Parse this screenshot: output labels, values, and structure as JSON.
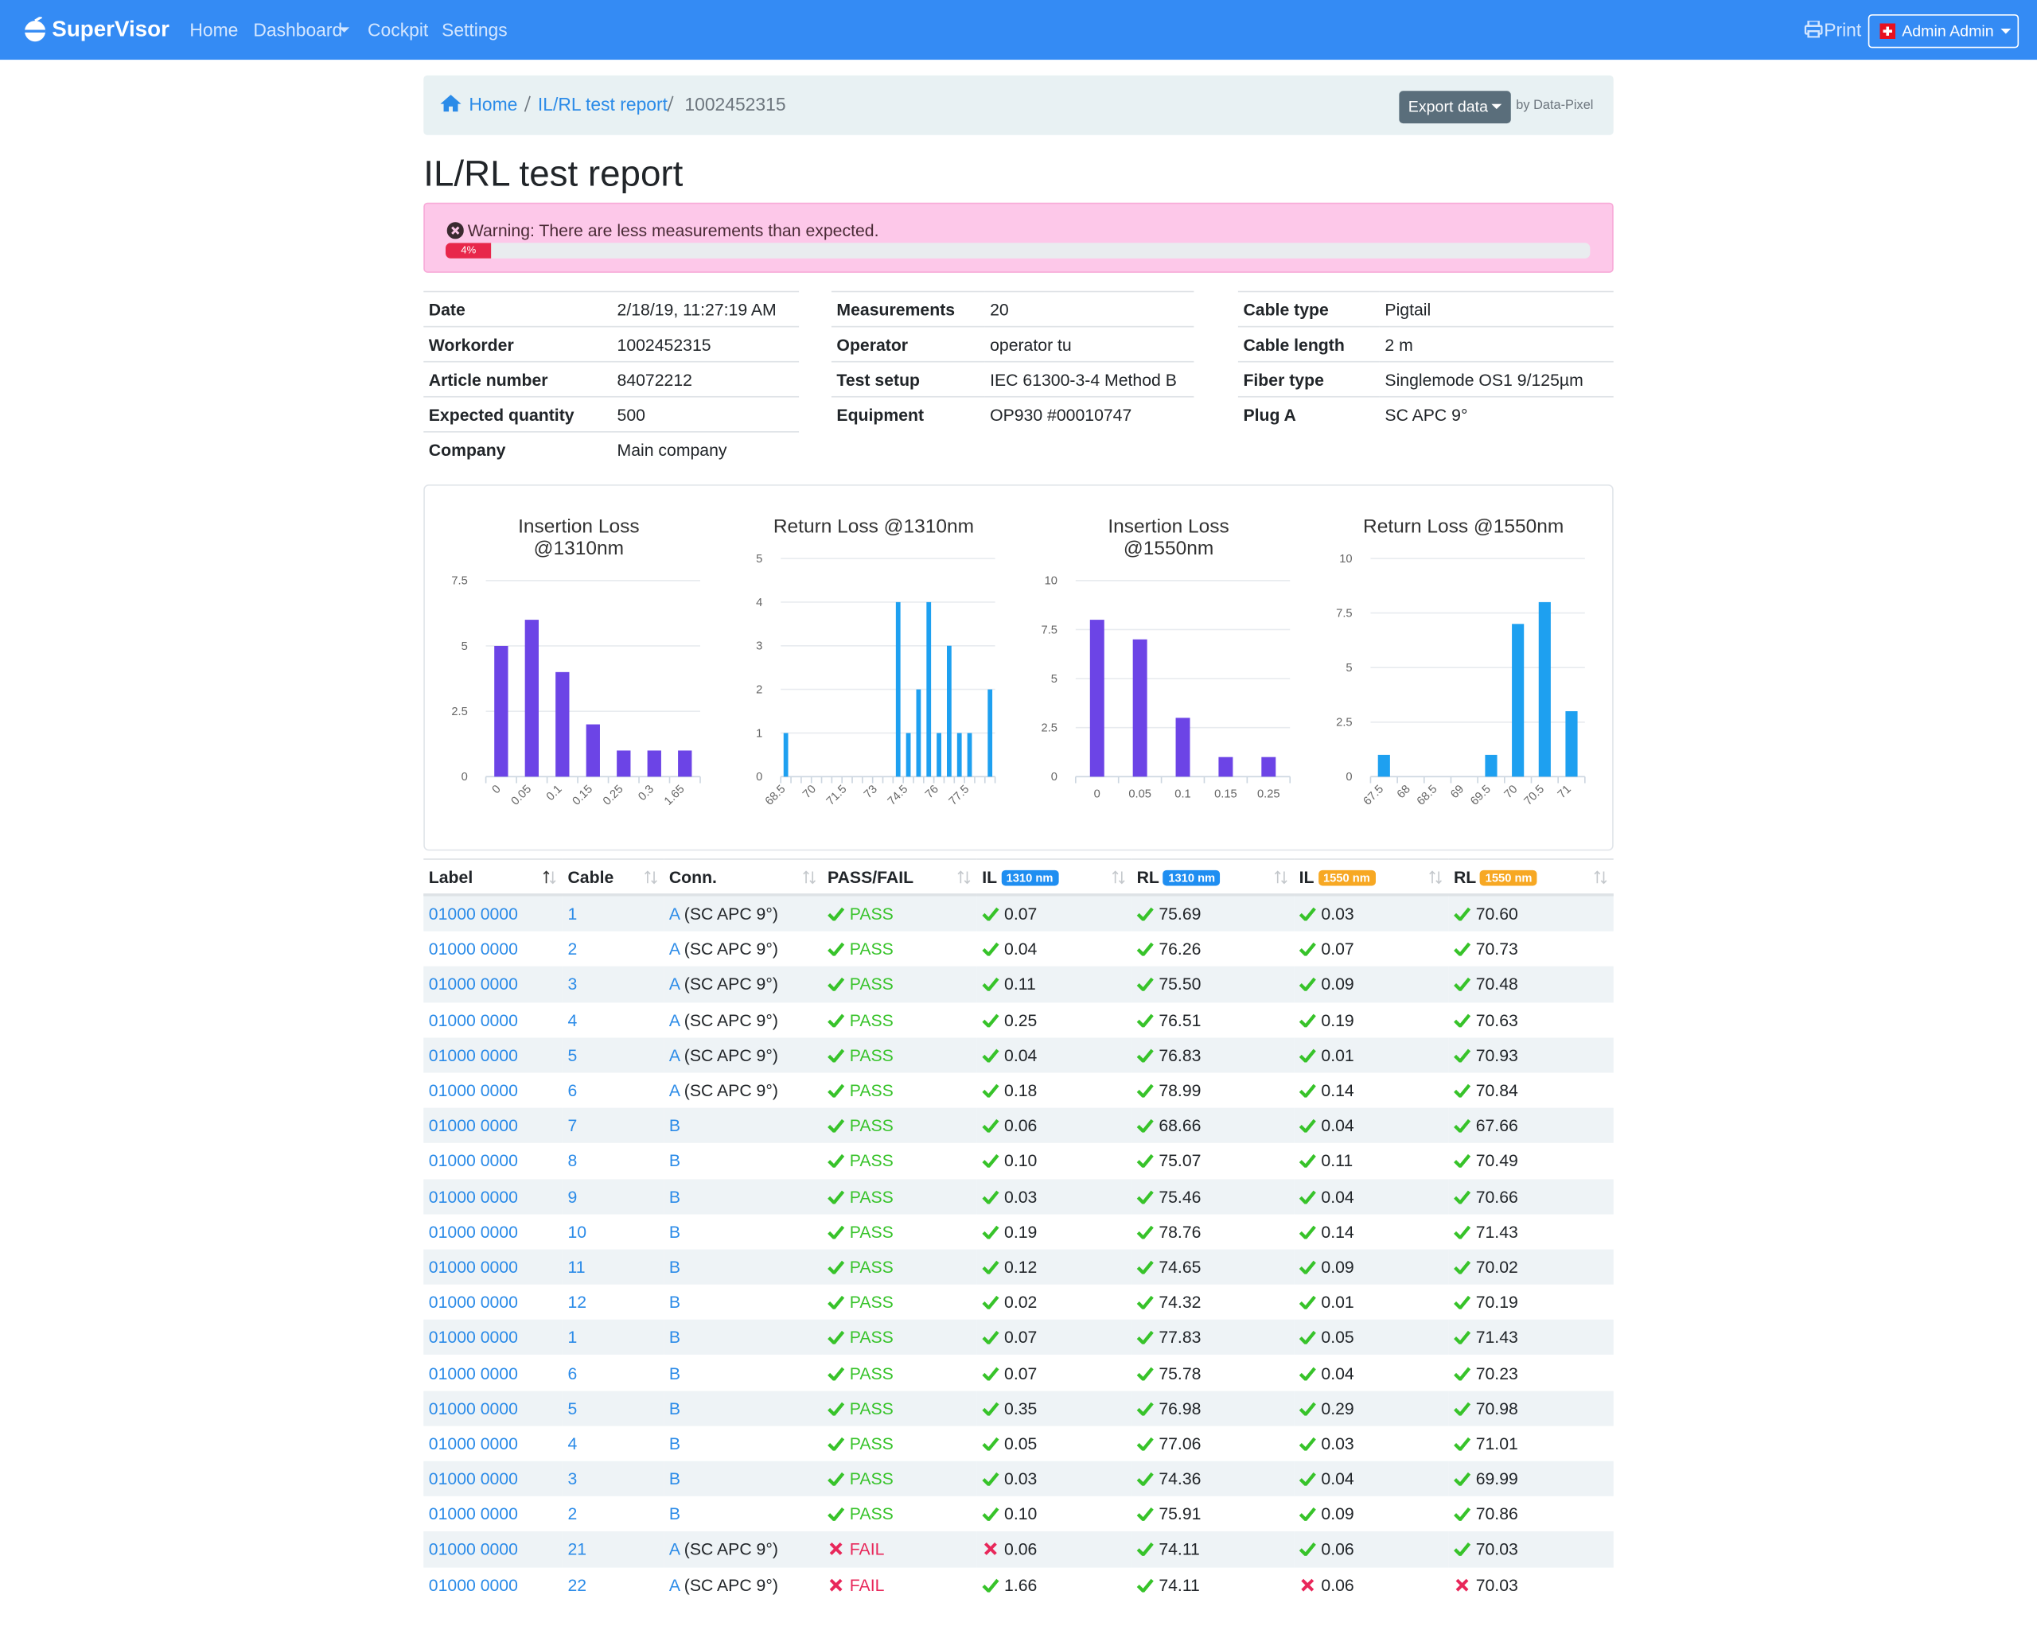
{
  "nav": {
    "brand": "SuperVisor",
    "links": [
      "Home",
      "Dashboard",
      "Cockpit",
      "Settings"
    ],
    "print": "Print",
    "user": "Admin Admin"
  },
  "breadcrumb": {
    "items": [
      "Home",
      "IL/RL test report",
      "1002452315"
    ],
    "export": "Export data",
    "credit": "by Data-Pixel"
  },
  "title": "IL/RL test report",
  "alert": {
    "text": "Warning: There are less measurements than expected.",
    "progress": 4,
    "progress_label": "4%"
  },
  "details": [
    [
      {
        "label": "Date",
        "value": "2/18/19, 11:27:19 AM"
      },
      {
        "label": "Workorder",
        "value": "1002452315"
      },
      {
        "label": "Article number",
        "value": "84072212"
      },
      {
        "label": "Expected quantity",
        "value": "500"
      },
      {
        "label": "Company",
        "value": "Main company"
      }
    ],
    [
      {
        "label": "Measurements",
        "value": "20"
      },
      {
        "label": "Operator",
        "value": "operator tu"
      },
      {
        "label": "Test setup",
        "value": "IEC 61300-3-4 Method B"
      },
      {
        "label": "Equipment",
        "value": "OP930 #00010747"
      }
    ],
    [
      {
        "label": "Cable type",
        "value": "Pigtail"
      },
      {
        "label": "Cable length",
        "value": "2 m"
      },
      {
        "label": "Fiber type",
        "value": "Singlemode OS1 9/125µm"
      },
      {
        "label": "Plug A",
        "value": "SC APC 9°"
      }
    ]
  ],
  "chart_data": [
    {
      "type": "bar",
      "title": "Insertion Loss @1310nm",
      "color": "#6c44e6",
      "grid": true,
      "categories": [
        "0",
        "0.05",
        "0.1",
        "0.15",
        "0.25",
        "0.3",
        "1.65"
      ],
      "values": [
        5,
        6,
        4,
        2,
        1,
        1,
        1
      ],
      "ylim": [
        0,
        7.5
      ],
      "yticks": [
        0,
        2.5,
        5,
        7.5
      ]
    },
    {
      "type": "bar",
      "title": "Return Loss @1310nm",
      "color": "#1ea0f0",
      "grid": true,
      "categories": [
        "68.5",
        null,
        null,
        "70",
        null,
        null,
        "71.5",
        null,
        null,
        "73",
        null,
        null,
        "74.5",
        null,
        null,
        "76",
        null,
        null,
        "77.5",
        null,
        null
      ],
      "values": [
        1,
        0,
        0,
        0,
        0,
        0,
        0,
        0,
        0,
        0,
        0,
        4,
        1,
        2,
        4,
        1,
        3,
        1,
        1,
        0,
        2
      ],
      "ylim": [
        0,
        5
      ],
      "yticks": [
        0,
        1,
        2,
        3,
        4,
        5
      ]
    },
    {
      "type": "bar",
      "title": "Insertion Loss @1550nm",
      "color": "#6c44e6",
      "grid": true,
      "categories": [
        "0",
        "0.05",
        "0.1",
        "0.15",
        "0.25"
      ],
      "values": [
        8,
        7,
        3,
        1,
        1
      ],
      "ylim": [
        0,
        10
      ],
      "yticks": [
        0,
        2.5,
        5,
        7.5,
        10
      ]
    },
    {
      "type": "bar",
      "title": "Return Loss @1550nm",
      "color": "#1ea0f0",
      "grid": true,
      "categories": [
        "67.5",
        "68",
        "68.5",
        "69",
        "69.5",
        "70",
        "70.5",
        "71"
      ],
      "values": [
        1,
        0,
        0,
        0,
        1,
        7,
        8,
        3
      ],
      "ylim": [
        0,
        10
      ],
      "yticks": [
        0,
        2.5,
        5,
        7.5,
        10
      ]
    }
  ],
  "table": {
    "columns": [
      {
        "label": "Label"
      },
      {
        "label": "Cable"
      },
      {
        "label": "Conn."
      },
      {
        "label": "PASS/FAIL"
      },
      {
        "label": "IL",
        "badge": "1310 nm",
        "badge_color": "#1f8ef1"
      },
      {
        "label": "RL",
        "badge": "1310 nm",
        "badge_color": "#1f8ef1"
      },
      {
        "label": "IL",
        "badge": "1550 nm",
        "badge_color": "#f7a823"
      },
      {
        "label": "RL",
        "badge": "1550 nm",
        "badge_color": "#f7a823"
      }
    ],
    "rows": [
      {
        "label": "01000 0000",
        "cable": "1",
        "conn": "A",
        "plug": "(SC APC 9°)",
        "status": "PASS",
        "pass": true,
        "values": [
          "0.07",
          "75.69",
          "0.03",
          "70.60"
        ],
        "ok": [
          true,
          true,
          true,
          true
        ]
      },
      {
        "label": "01000 0000",
        "cable": "2",
        "conn": "A",
        "plug": "(SC APC 9°)",
        "status": "PASS",
        "pass": true,
        "values": [
          "0.04",
          "76.26",
          "0.07",
          "70.73"
        ],
        "ok": [
          true,
          true,
          true,
          true
        ]
      },
      {
        "label": "01000 0000",
        "cable": "3",
        "conn": "A",
        "plug": "(SC APC 9°)",
        "status": "PASS",
        "pass": true,
        "values": [
          "0.11",
          "75.50",
          "0.09",
          "70.48"
        ],
        "ok": [
          true,
          true,
          true,
          true
        ]
      },
      {
        "label": "01000 0000",
        "cable": "4",
        "conn": "A",
        "plug": "(SC APC 9°)",
        "status": "PASS",
        "pass": true,
        "values": [
          "0.25",
          "76.51",
          "0.19",
          "70.63"
        ],
        "ok": [
          true,
          true,
          true,
          true
        ]
      },
      {
        "label": "01000 0000",
        "cable": "5",
        "conn": "A",
        "plug": "(SC APC 9°)",
        "status": "PASS",
        "pass": true,
        "values": [
          "0.04",
          "76.83",
          "0.01",
          "70.93"
        ],
        "ok": [
          true,
          true,
          true,
          true
        ]
      },
      {
        "label": "01000 0000",
        "cable": "6",
        "conn": "A",
        "plug": "(SC APC 9°)",
        "status": "PASS",
        "pass": true,
        "values": [
          "0.18",
          "78.99",
          "0.14",
          "70.84"
        ],
        "ok": [
          true,
          true,
          true,
          true
        ]
      },
      {
        "label": "01000 0000",
        "cable": "7",
        "conn": "B",
        "status": "PASS",
        "pass": true,
        "values": [
          "0.06",
          "68.66",
          "0.04",
          "67.66"
        ],
        "ok": [
          true,
          true,
          true,
          true
        ]
      },
      {
        "label": "01000 0000",
        "cable": "8",
        "conn": "B",
        "status": "PASS",
        "pass": true,
        "values": [
          "0.10",
          "75.07",
          "0.11",
          "70.49"
        ],
        "ok": [
          true,
          true,
          true,
          true
        ]
      },
      {
        "label": "01000 0000",
        "cable": "9",
        "conn": "B",
        "status": "PASS",
        "pass": true,
        "values": [
          "0.03",
          "75.46",
          "0.04",
          "70.66"
        ],
        "ok": [
          true,
          true,
          true,
          true
        ]
      },
      {
        "label": "01000 0000",
        "cable": "10",
        "conn": "B",
        "status": "PASS",
        "pass": true,
        "values": [
          "0.19",
          "78.76",
          "0.14",
          "71.43"
        ],
        "ok": [
          true,
          true,
          true,
          true
        ]
      },
      {
        "label": "01000 0000",
        "cable": "11",
        "conn": "B",
        "status": "PASS",
        "pass": true,
        "values": [
          "0.12",
          "74.65",
          "0.09",
          "70.02"
        ],
        "ok": [
          true,
          true,
          true,
          true
        ]
      },
      {
        "label": "01000 0000",
        "cable": "12",
        "conn": "B",
        "status": "PASS",
        "pass": true,
        "values": [
          "0.02",
          "74.32",
          "0.01",
          "70.19"
        ],
        "ok": [
          true,
          true,
          true,
          true
        ]
      },
      {
        "label": "01000 0000",
        "cable": "1",
        "conn": "B",
        "status": "PASS",
        "pass": true,
        "values": [
          "0.07",
          "77.83",
          "0.05",
          "71.43"
        ],
        "ok": [
          true,
          true,
          true,
          true
        ]
      },
      {
        "label": "01000 0000",
        "cable": "6",
        "conn": "B",
        "status": "PASS",
        "pass": true,
        "values": [
          "0.07",
          "75.78",
          "0.04",
          "70.23"
        ],
        "ok": [
          true,
          true,
          true,
          true
        ]
      },
      {
        "label": "01000 0000",
        "cable": "5",
        "conn": "B",
        "status": "PASS",
        "pass": true,
        "values": [
          "0.35",
          "76.98",
          "0.29",
          "70.98"
        ],
        "ok": [
          true,
          true,
          true,
          true
        ]
      },
      {
        "label": "01000 0000",
        "cable": "4",
        "conn": "B",
        "status": "PASS",
        "pass": true,
        "values": [
          "0.05",
          "77.06",
          "0.03",
          "71.01"
        ],
        "ok": [
          true,
          true,
          true,
          true
        ]
      },
      {
        "label": "01000 0000",
        "cable": "3",
        "conn": "B",
        "status": "PASS",
        "pass": true,
        "values": [
          "0.03",
          "74.36",
          "0.04",
          "69.99"
        ],
        "ok": [
          true,
          true,
          true,
          true
        ]
      },
      {
        "label": "01000 0000",
        "cable": "2",
        "conn": "B",
        "status": "PASS",
        "pass": true,
        "values": [
          "0.10",
          "75.91",
          "0.09",
          "70.86"
        ],
        "ok": [
          true,
          true,
          true,
          true
        ]
      },
      {
        "label": "01000 0000",
        "cable": "21",
        "conn": "A",
        "plug": "(SC APC 9°)",
        "status": "FAIL",
        "pass": false,
        "values": [
          "0.06",
          "74.11",
          "0.06",
          "70.03"
        ],
        "ok": [
          false,
          true,
          true,
          true
        ]
      },
      {
        "label": "01000 0000",
        "cable": "22",
        "conn": "A",
        "plug": "(SC APC 9°)",
        "status": "FAIL",
        "pass": false,
        "values": [
          "1.66",
          "74.11",
          "0.06",
          "70.03"
        ],
        "ok": [
          true,
          true,
          false,
          false
        ]
      }
    ]
  }
}
